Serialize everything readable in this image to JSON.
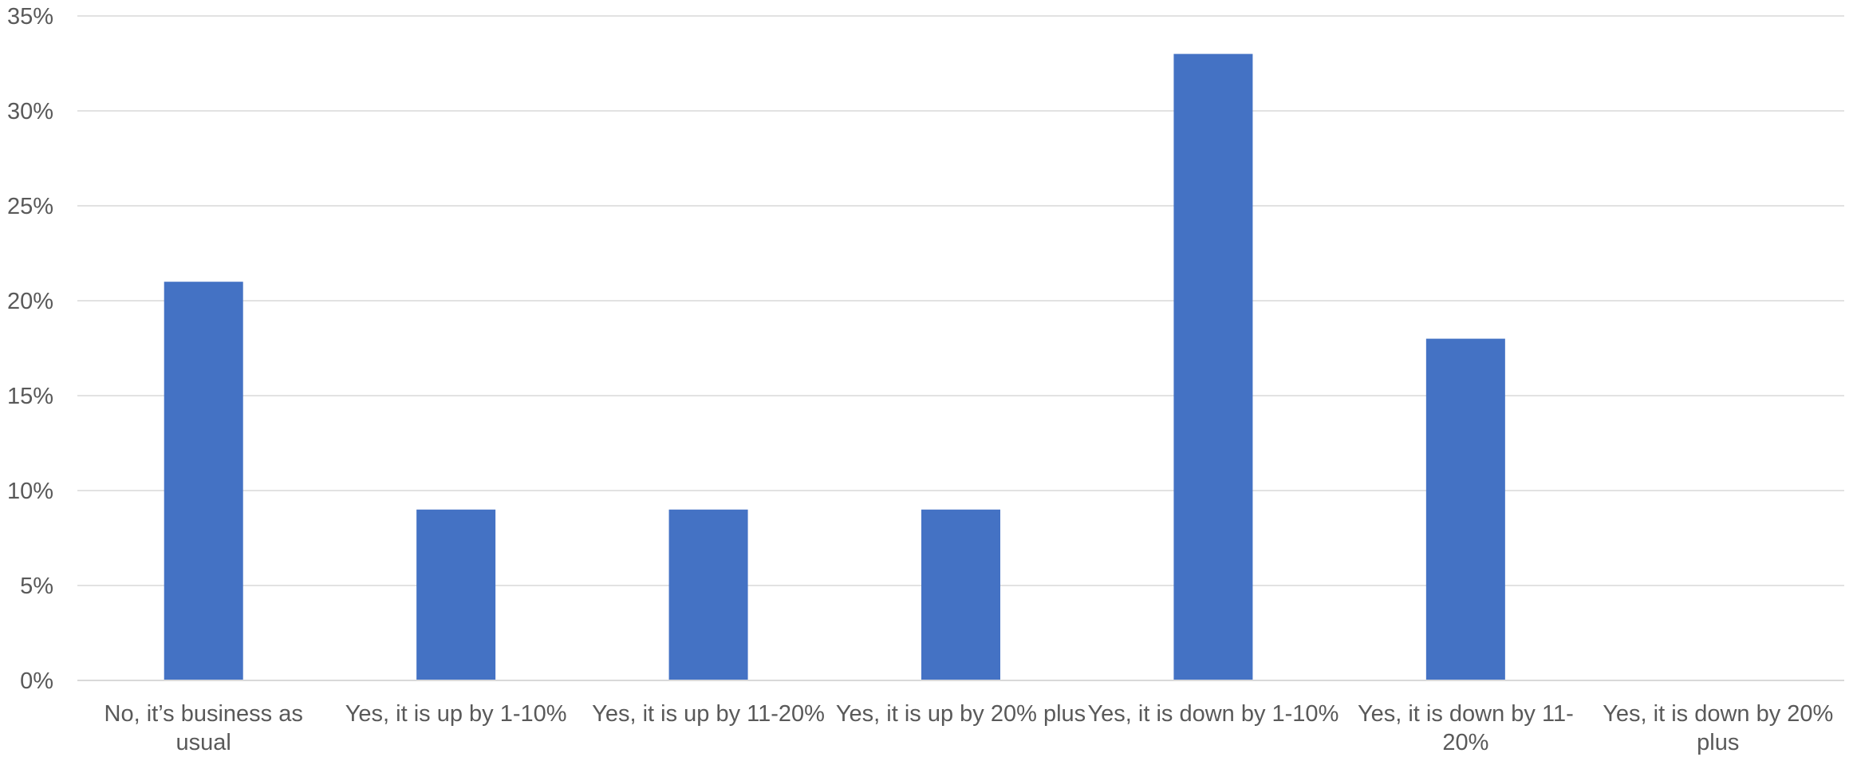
{
  "chart_data": {
    "type": "bar",
    "title": "",
    "xlabel": "",
    "ylabel": "",
    "categories": [
      "No, it’s business as usual",
      "Yes, it is up by 1-10%",
      "Yes, it is up by 11-20%",
      "Yes, it is up by 20% plus",
      "Yes, it is down by 1-10%",
      "Yes, it is down by 11-20%",
      "Yes, it is down by 20% plus"
    ],
    "category_label_lines": [
      [
        "No, it’s business as",
        "usual"
      ],
      [
        "Yes, it is up by 1-10%"
      ],
      [
        "Yes, it is up by 11-20%"
      ],
      [
        "Yes, it is up by 20% plus"
      ],
      [
        "Yes, it is down by 1-10%"
      ],
      [
        "Yes, it is down by 11-",
        "20%"
      ],
      [
        "Yes, it is down by 20%",
        "plus"
      ]
    ],
    "values": [
      21,
      9,
      9,
      9,
      33,
      18,
      0
    ],
    "value_unit": "%",
    "ylim": [
      0,
      35
    ],
    "y_ticks": [
      "0%",
      "5%",
      "10%",
      "15%",
      "20%",
      "25%",
      "30%",
      "35%"
    ],
    "grid": true,
    "legend": "none",
    "colors": {
      "bar": "#4472C4",
      "grid": "#D9D9D9",
      "text": "#595959"
    }
  }
}
